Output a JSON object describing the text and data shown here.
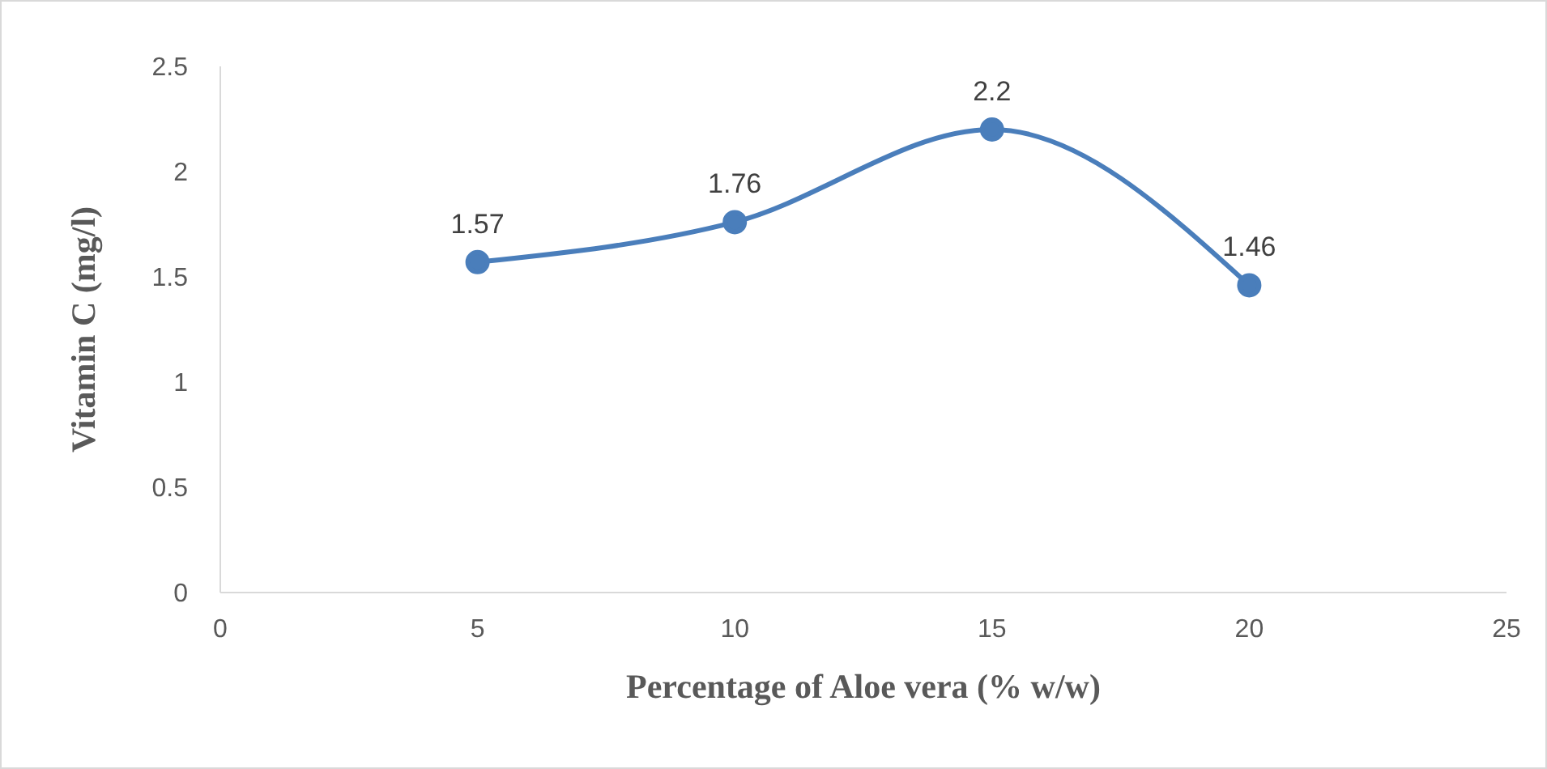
{
  "chart_data": {
    "type": "line",
    "xlabel": "Percentage of Aloe vera (% w/w)",
    "ylabel": "Vitamin C (mg/l)",
    "x": [
      5,
      10,
      15,
      20
    ],
    "series": [
      {
        "color": "#4a7ebb",
        "values": [
          1.57,
          1.76,
          2.2,
          1.46
        ]
      }
    ],
    "xlim": [
      0,
      25
    ],
    "xticks": [
      0,
      5,
      10,
      15,
      20,
      25
    ],
    "ylim": [
      0,
      2.5
    ],
    "yticks": [
      0,
      0.5,
      1,
      1.5,
      2,
      2.5
    ],
    "data_labels": true,
    "marker": "circle",
    "line_style": "solid",
    "grid": false
  }
}
